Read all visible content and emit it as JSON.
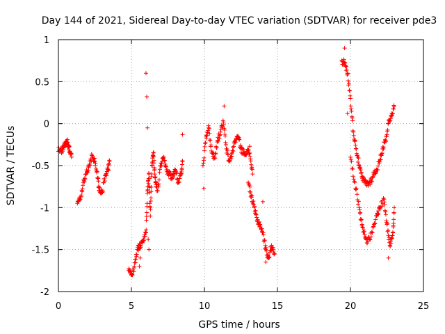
{
  "chart_data": {
    "type": "scatter",
    "title": "Day 144 of 2021, Sidereal Day-to-day VTEC variation (SDTVAR) for receiver pde3",
    "xlabel": "GPS time / hours",
    "ylabel": "SDTVAR / TECUs",
    "xlim": [
      0,
      25
    ],
    "ylim": [
      -2,
      1
    ],
    "xticks": [
      0,
      5,
      10,
      15,
      20,
      25
    ],
    "xtick_labels": [
      "0",
      "5",
      "10",
      "15",
      "20",
      "25"
    ],
    "yticks": [
      -2,
      -1.5,
      -1,
      -0.5,
      0,
      0.5,
      1
    ],
    "ytick_labels": [
      "-2",
      "-1.5",
      "-1",
      "-0.5",
      "0",
      "0.5",
      "1"
    ],
    "grid": true,
    "marker": "+",
    "color": "#ff0000",
    "series": [
      {
        "name": "SDTVAR",
        "segments": [
          {
            "x": [
              0.0,
              0.2,
              0.35,
              0.5,
              0.6,
              0.7,
              0.8,
              0.9
            ],
            "y": [
              -0.33,
              -0.32,
              -0.28,
              -0.25,
              -0.22,
              -0.28,
              -0.35,
              -0.4
            ]
          },
          {
            "x": [
              1.3,
              1.5,
              1.7,
              1.9,
              2.1,
              2.3,
              2.5,
              2.7,
              2.8,
              3.0,
              3.2,
              3.4,
              3.5
            ],
            "y": [
              -0.95,
              -0.9,
              -0.7,
              -0.6,
              -0.5,
              -0.38,
              -0.45,
              -0.65,
              -0.8,
              -0.82,
              -0.62,
              -0.55,
              -0.45
            ]
          },
          {
            "x": [
              4.8,
              5.0,
              5.2,
              5.4,
              5.6,
              5.8,
              6.0,
              6.1,
              6.2,
              6.3,
              6.4,
              6.5,
              6.6,
              6.7,
              6.8,
              7.0,
              7.2,
              7.4,
              7.6,
              7.8,
              8.0,
              8.2,
              8.4,
              8.5
            ],
            "y": [
              -1.75,
              -1.8,
              -1.7,
              -1.5,
              -1.45,
              -1.4,
              -1.3,
              -0.8,
              -0.6,
              -1.1,
              -0.5,
              -0.35,
              -0.6,
              -0.75,
              -0.8,
              -0.5,
              -0.42,
              -0.55,
              -0.6,
              -0.65,
              -0.55,
              -0.7,
              -0.6,
              -0.45
            ]
          },
          {
            "x": [
              9.9,
              10.1,
              10.3,
              10.5,
              10.7,
              10.9,
              11.1,
              11.3,
              11.5,
              11.7,
              11.9,
              12.1,
              12.3,
              12.5,
              12.7,
              12.9,
              13.1,
              13.3
            ],
            "y": [
              -0.5,
              -0.15,
              -0.05,
              -0.35,
              -0.4,
              -0.2,
              -0.1,
              0.02,
              -0.3,
              -0.45,
              -0.35,
              -0.2,
              -0.15,
              -0.3,
              -0.35,
              -0.33,
              -0.35,
              -0.6
            ]
          },
          {
            "x": [
              13.0,
              13.2,
              13.4,
              13.6,
              13.8,
              14.0,
              14.2,
              14.4,
              14.6,
              14.8
            ],
            "y": [
              -0.7,
              -0.85,
              -1.0,
              -1.15,
              -1.2,
              -1.3,
              -1.5,
              -1.6,
              -1.45,
              -1.55
            ]
          },
          {
            "x": [
              19.4,
              19.6,
              19.8,
              20.0,
              20.2,
              20.4,
              20.6,
              20.8,
              21.0,
              21.2,
              21.4,
              21.6,
              21.8,
              22.0,
              22.2,
              22.4,
              22.6,
              22.8,
              23.0
            ],
            "y": [
              0.75,
              0.72,
              0.6,
              0.3,
              -0.1,
              -0.3,
              -0.5,
              -0.65,
              -0.7,
              -0.72,
              -0.68,
              -0.6,
              -0.55,
              -0.45,
              -0.3,
              -0.2,
              0.0,
              0.1,
              0.2
            ]
          },
          {
            "x": [
              20.0,
              20.3,
              20.6,
              20.8,
              21.0,
              21.2,
              21.5,
              21.8,
              22.0,
              22.3,
              22.5,
              22.7,
              22.9,
              23.0
            ],
            "y": [
              -0.4,
              -0.7,
              -1.0,
              -1.2,
              -1.35,
              -1.4,
              -1.3,
              -1.1,
              -1.0,
              -0.9,
              -1.2,
              -1.45,
              -1.3,
              -1.0
            ]
          }
        ],
        "outliers": {
          "x": [
            5.55,
            5.6,
            6.0,
            6.05,
            6.1,
            6.15,
            6.2,
            8.5,
            9.95,
            11.35,
            13.1,
            14.0,
            14.2,
            19.6,
            19.8,
            22.6
          ],
          "y": [
            -1.7,
            -1.6,
            0.6,
            0.32,
            -0.05,
            -1.38,
            -1.5,
            -0.13,
            -0.77,
            0.21,
            -0.27,
            -0.93,
            -1.65,
            0.9,
            0.12,
            -1.6
          ]
        }
      }
    ]
  }
}
